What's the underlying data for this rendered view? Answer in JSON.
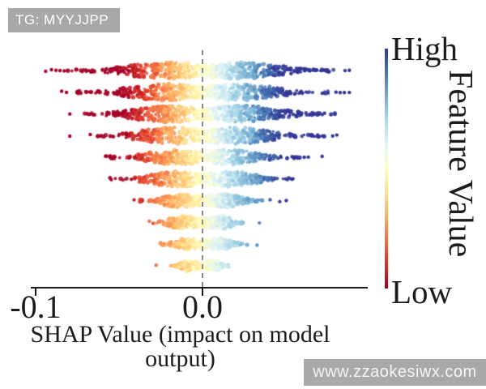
{
  "badge": {
    "label": "TG: MYYJJPP"
  },
  "watermark": {
    "label": "www.zzaokesiwx.com"
  },
  "colors": {
    "badge_bg": "#a8a8a8",
    "watermark_bg": "#a9a9a9",
    "axis": "#1a1a1a",
    "zero_line": "#8a8a8a"
  },
  "chart_data": {
    "type": "scatter",
    "variant": "shap-beeswarm-summary",
    "title": "",
    "xlabel": "SHAP Value (impact on model output)",
    "ylabel": "",
    "xlim": [
      -0.103,
      0.099
    ],
    "grid": false,
    "zero_line": {
      "x": 0.0,
      "style": "dashed"
    },
    "xticks": [
      {
        "value": -0.1,
        "label": "-0.1"
      },
      {
        "value": 0.0,
        "label": "0.0"
      }
    ],
    "colorbar": {
      "high_label": "High",
      "low_label": "Low",
      "axis_label": "Feature Value",
      "colors_top_to_bottom": [
        "#313695",
        "#4575b4",
        "#74add1",
        "#abd9e9",
        "#e0f3f8",
        "#ffffbf",
        "#fee090",
        "#fdae61",
        "#f46d43",
        "#d73027",
        "#a50026"
      ]
    },
    "colormap_low_to_high": [
      "#a50026",
      "#d73027",
      "#f46d43",
      "#fdae61",
      "#fee090",
      "#ffffbf",
      "#e0f3f8",
      "#abd9e9",
      "#74add1",
      "#4575b4",
      "#313695"
    ],
    "n_rows": 10,
    "rows": [
      {
        "rank": 1,
        "x_min": -0.082,
        "x_max": 0.082,
        "lobe_peak": 0.02,
        "half_thickness_px": 10.5,
        "n_points": 560,
        "outliers": [
          -0.094,
          -0.0905,
          -0.0878,
          -0.0854,
          -0.0829,
          0.0854,
          0.088
        ]
      },
      {
        "rank": 2,
        "x_min": -0.078,
        "x_max": 0.0766,
        "lobe_peak": 0.021,
        "half_thickness_px": 10.5,
        "n_points": 550,
        "outliers": [
          -0.0844,
          -0.0815,
          0.08,
          0.0825,
          0.085,
          0.088
        ]
      },
      {
        "rank": 3,
        "x_min": -0.0756,
        "x_max": 0.08,
        "lobe_peak": 0.02,
        "half_thickness_px": 10.5,
        "n_points": 530,
        "outliers": [
          -0.0795
        ]
      },
      {
        "rank": 4,
        "x_min": -0.0644,
        "x_max": 0.0732,
        "lobe_peak": 0.018,
        "half_thickness_px": 10.5,
        "n_points": 500,
        "outliers": [
          -0.0795,
          -0.0673,
          0.078,
          0.0805
        ]
      },
      {
        "rank": 5,
        "x_min": -0.0585,
        "x_max": 0.0585,
        "lobe_peak": 0.016,
        "half_thickness_px": 9.5,
        "n_points": 450,
        "outliers": [
          0.061,
          0.0634,
          0.0717
        ]
      },
      {
        "rank": 6,
        "x_min": -0.056,
        "x_max": 0.056,
        "lobe_peak": 0.015,
        "half_thickness_px": 9.5,
        "n_points": 420,
        "outliers": []
      },
      {
        "rank": 7,
        "x_min": -0.0376,
        "x_max": 0.0366,
        "lobe_peak": 0.014,
        "half_thickness_px": 8.5,
        "n_points": 370,
        "outliers": [
          -0.041,
          0.0405,
          0.0463,
          0.0502
        ]
      },
      {
        "rank": 8,
        "x_min": -0.0327,
        "x_max": 0.0259,
        "lobe_peak": 0.012,
        "half_thickness_px": 8.0,
        "n_points": 330,
        "outliers": [
          0.0341
        ]
      },
      {
        "rank": 9,
        "x_min": -0.0259,
        "x_max": 0.0278,
        "lobe_peak": 0.01,
        "half_thickness_px": 7.0,
        "n_points": 290,
        "outliers": [
          0.0327
        ]
      },
      {
        "rank": 10,
        "x_min": -0.0205,
        "x_max": 0.0161,
        "lobe_peak": 0.008,
        "half_thickness_px": 6.5,
        "n_points": 250,
        "outliers": [
          -0.0278
        ]
      }
    ]
  }
}
